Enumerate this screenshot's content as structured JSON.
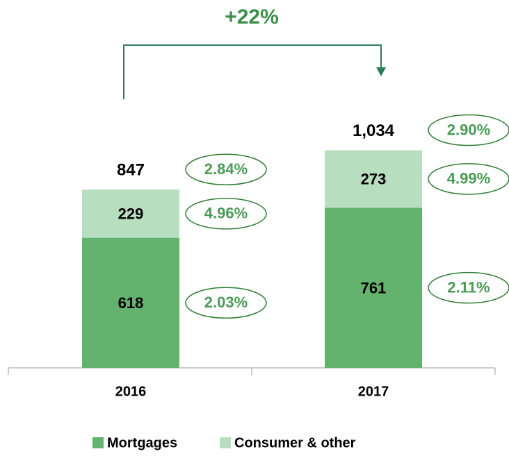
{
  "chart_data": {
    "type": "stacked_bar",
    "categories": [
      "2016",
      "2017"
    ],
    "series": [
      {
        "name": "Mortgages",
        "color": "#63b26d",
        "values": [
          618,
          761
        ],
        "rate_labels": [
          "2.03%",
          "2.11%"
        ]
      },
      {
        "name": "Consumer & other",
        "color": "#b7dfbf",
        "values": [
          229,
          273
        ],
        "rate_labels": [
          "4.96%",
          "4.99%"
        ]
      }
    ],
    "total_labels": [
      "847",
      "1,034"
    ],
    "total_rate_labels": [
      "2.84%",
      "2.90%"
    ],
    "annotation": "+22%",
    "ylim": [
      0,
      1250
    ],
    "legend": "bottom"
  }
}
